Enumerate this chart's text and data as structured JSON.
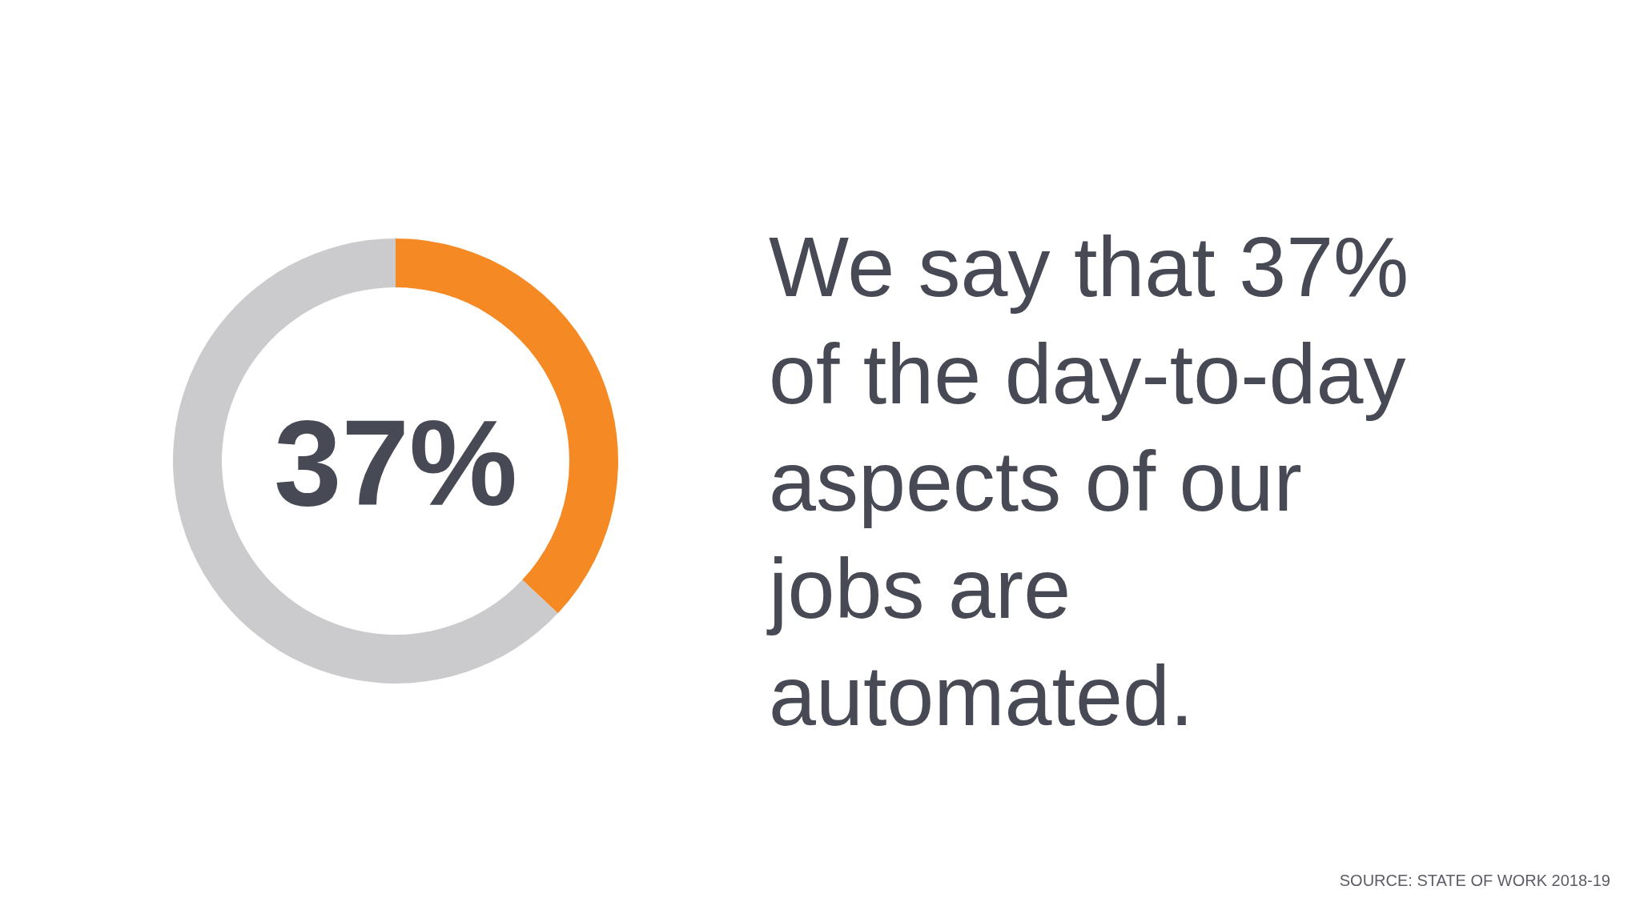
{
  "chart_data": {
    "type": "donut",
    "title": "We say that 37%\nof the day-to-day\naspects of our\njobs are\nautomated.",
    "categories": [
      null,
      null
    ],
    "values": [
      37,
      63
    ],
    "colors": [
      "#f58a24",
      "#cbcbcd"
    ],
    "annotations": [
      "37%",
      "SOURCE: STATE OF WORK 2018-19"
    ]
  }
}
